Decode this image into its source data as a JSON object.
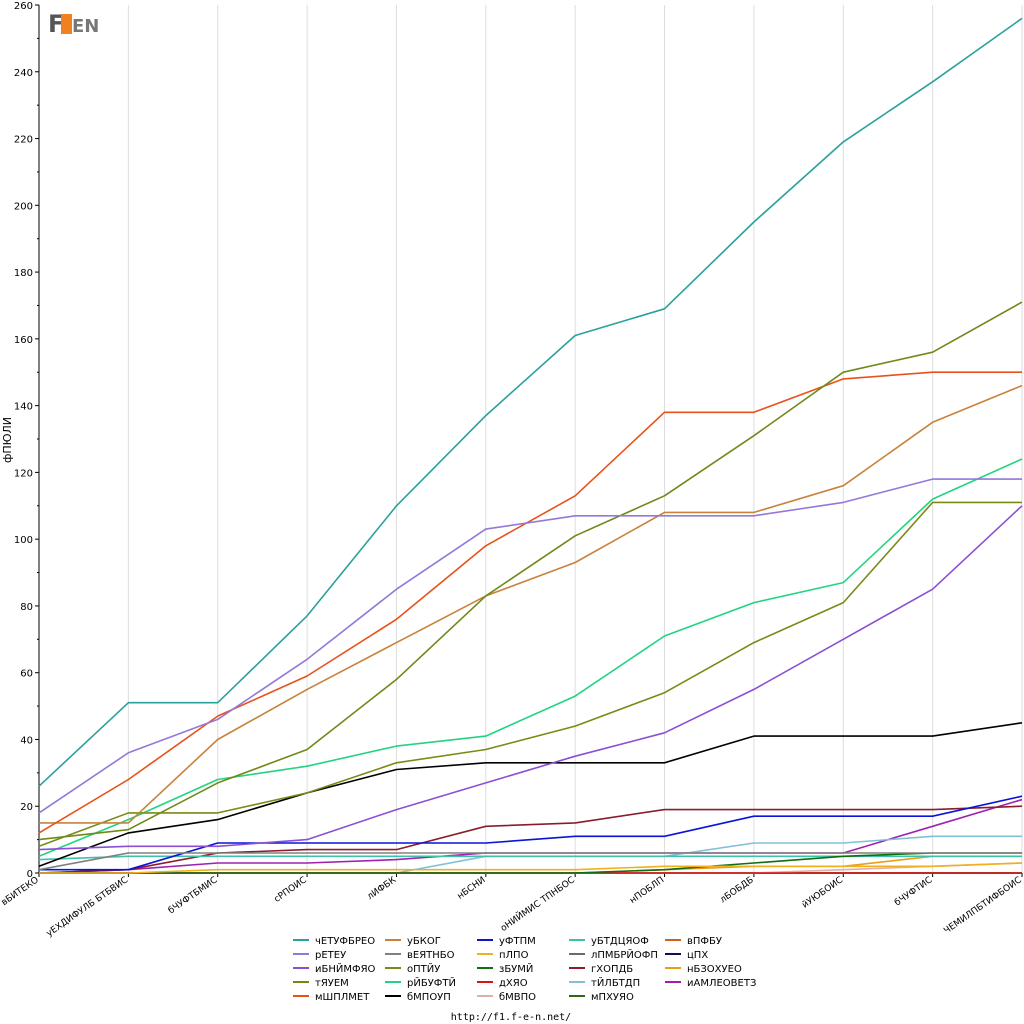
{
  "logo": {
    "text": "F1EN",
    "colors": {
      "f": "#555555",
      "one": "#f08020",
      "en": "#777777"
    }
  },
  "footer": {
    "url": "http://f1.f-e-n.net/"
  },
  "chart_data": {
    "type": "line",
    "ylabel": "фПЮЛИ",
    "xlabel": "",
    "ylim": [
      0,
      260
    ],
    "yticks": [
      0,
      20,
      40,
      60,
      80,
      100,
      120,
      140,
      160,
      180,
      200,
      220,
      240,
      260
    ],
    "grid": "vertical",
    "legend_placement": "bottom",
    "categories": [
      "вБИТЕКО",
      "уЕХДИФУЛБ БТБВИС",
      "бЧУФТБМИС",
      "сРПОИС",
      "лИФБК",
      "нБСНИ",
      "оНИЙМИС ТПНБОС",
      "нПОБЛП",
      "лБОБДБ",
      "йУЮБОИС",
      "бЧУФТИС",
      "ЧЕМИЛПБТИФБОИС"
    ],
    "series": [
      {
        "name": "чЕТУФБРЕО",
        "color": "#2aa19a",
        "values": [
          26,
          51,
          51,
          77,
          110,
          137,
          161,
          169,
          195,
          219,
          237,
          256
        ]
      },
      {
        "name": "рЕТЕУ",
        "color": "#9478d8",
        "values": [
          18,
          36,
          46,
          64,
          85,
          103,
          107,
          107,
          107,
          111,
          118,
          118
        ]
      },
      {
        "name": "иБНЙМФЯО",
        "color": "#8a4fd4",
        "values": [
          7,
          8,
          8,
          10,
          19,
          27,
          35,
          42,
          55,
          70,
          85,
          110
        ]
      },
      {
        "name": "тЯУЕМ",
        "color": "#6e8a18",
        "values": [
          10,
          13,
          27,
          37,
          58,
          83,
          101,
          113,
          131,
          150,
          156,
          171
        ]
      },
      {
        "name": "мШПЛМЕТ",
        "color": "#e8521a",
        "values": [
          12,
          28,
          47,
          59,
          76,
          98,
          113,
          138,
          138,
          148,
          150,
          150
        ]
      },
      {
        "name": "уБКОГ",
        "color": "#c8823c",
        "values": [
          15,
          15,
          40,
          55,
          69,
          83,
          93,
          108,
          108,
          116,
          135,
          146
        ]
      },
      {
        "name": "вЕЯТНБО",
        "color": "#808080",
        "values": [
          1,
          6,
          6,
          6,
          6,
          6,
          6,
          6,
          6,
          6,
          6,
          6
        ]
      },
      {
        "name": "оПТЙУ",
        "color": "#7a8a14",
        "values": [
          8,
          18,
          18,
          24,
          33,
          37,
          44,
          54,
          69,
          81,
          111,
          111
        ]
      },
      {
        "name": "рЙБУФТЙ",
        "color": "#22d480",
        "values": [
          5,
          16,
          28,
          32,
          38,
          41,
          53,
          71,
          81,
          87,
          112,
          124
        ]
      },
      {
        "name": "бМПОУП",
        "color": "#000000",
        "values": [
          2,
          12,
          16,
          24,
          31,
          33,
          33,
          33,
          41,
          41,
          41,
          45
        ]
      },
      {
        "name": "уФТПМ",
        "color": "#0a14d8",
        "values": [
          1,
          1,
          9,
          9,
          9,
          9,
          11,
          11,
          17,
          17,
          17,
          23
        ]
      },
      {
        "name": "пЛПО",
        "color": "#f0b020",
        "values": [
          0,
          0,
          1,
          1,
          1,
          1,
          1,
          2,
          2,
          2,
          2,
          3
        ]
      },
      {
        "name": "зБУМЙ",
        "color": "#0e6e10",
        "values": [
          0,
          0,
          0,
          0,
          0,
          0,
          0,
          1,
          3,
          5,
          6,
          6
        ]
      },
      {
        "name": "дХЯО",
        "color": "#dd1111",
        "values": [
          0,
          0,
          0,
          0,
          0,
          0,
          0,
          0,
          0,
          0,
          0,
          0
        ]
      },
      {
        "name": "бМВПО",
        "color": "#e0b0a8",
        "values": [
          0,
          0,
          0,
          0,
          0,
          0,
          0,
          0,
          0,
          1,
          2,
          3
        ]
      },
      {
        "name": "уБТДЦЯОФ",
        "color": "#40c0a8",
        "values": [
          4,
          5,
          5,
          5,
          5,
          5,
          5,
          5,
          5,
          5,
          5,
          5
        ]
      },
      {
        "name": "лПМБРЙОФП",
        "color": "#6c6c6c",
        "values": [
          0,
          0,
          0,
          0,
          0,
          0,
          0,
          0,
          0,
          0,
          0,
          0
        ]
      },
      {
        "name": "гХОПДБ",
        "color": "#8c1c2c",
        "values": [
          0,
          1,
          6,
          7,
          7,
          14,
          15,
          19,
          19,
          19,
          19,
          20
        ]
      },
      {
        "name": "тЙЛБТДП",
        "color": "#80c0d8",
        "values": [
          0,
          0,
          0,
          0,
          0,
          5,
          5,
          5,
          9,
          9,
          11,
          11
        ]
      },
      {
        "name": "мПХУЯО",
        "color": "#306818",
        "values": [
          0,
          0,
          0,
          0,
          0,
          0,
          0,
          0,
          0,
          0,
          0,
          0
        ]
      },
      {
        "name": "вПФБУ",
        "color": "#c86420",
        "values": [
          0,
          0,
          0,
          0,
          0,
          0,
          0,
          0,
          0,
          0,
          0,
          0
        ]
      },
      {
        "name": "цПХ",
        "color": "#10104a",
        "values": [
          0,
          0,
          0,
          0,
          0,
          0,
          0,
          0,
          0,
          0,
          0,
          0
        ]
      },
      {
        "name": "нБЗОХУЕО",
        "color": "#e8a018",
        "values": [
          0,
          0,
          0,
          0,
          0,
          0,
          0,
          1,
          2,
          2,
          5,
          5
        ]
      },
      {
        "name": "иАМЛЕОВЕТЗ",
        "color": "#a020b0",
        "values": [
          0,
          1,
          3,
          3,
          4,
          6,
          6,
          6,
          6,
          6,
          14,
          22
        ]
      }
    ]
  }
}
